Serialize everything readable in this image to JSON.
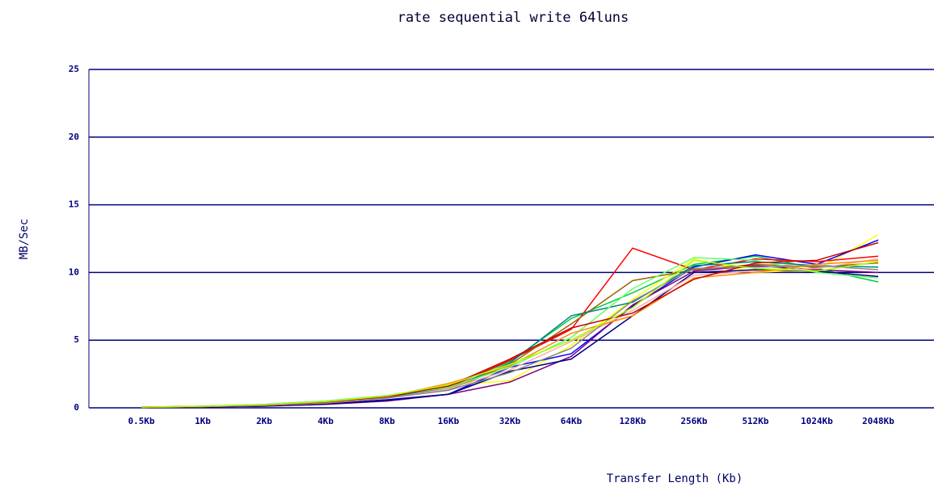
{
  "chart_data": {
    "type": "line",
    "title": "rate sequential write 64luns",
    "x_label": "Transfer Length (Kb)",
    "y_label": "MB/Sec",
    "categories": [
      "0.5Kb",
      "1Kb",
      "2Kb",
      "4Kb",
      "8Kb",
      "16Kb",
      "32Kb",
      "64Kb",
      "128Kb",
      "256Kb",
      "512Kb",
      "1024Kb",
      "2048Kb"
    ],
    "ylim": [
      0,
      25
    ],
    "yticks": [
      0,
      5,
      10,
      15,
      20,
      25
    ],
    "grid": true,
    "series": [
      {
        "color": "#00cc44",
        "values": [
          0.05,
          0.12,
          0.25,
          0.5,
          0.9,
          1.6,
          3.4,
          6.6,
          8.5,
          10.6,
          11.2,
          10.3,
          9.3
        ]
      },
      {
        "color": "#ffff00",
        "values": [
          0.04,
          0.1,
          0.2,
          0.4,
          0.8,
          1.7,
          2.0,
          4.6,
          8.0,
          11.0,
          10.0,
          10.2,
          12.8
        ]
      },
      {
        "color": "#0000ff",
        "values": [
          0.03,
          0.08,
          0.15,
          0.3,
          0.6,
          1.0,
          3.0,
          4.0,
          7.5,
          10.4,
          11.3,
          10.6,
          12.4
        ]
      },
      {
        "color": "#ff0000",
        "values": [
          0.05,
          0.1,
          0.2,
          0.4,
          0.8,
          1.5,
          3.5,
          5.8,
          11.8,
          10.2,
          11.0,
          10.8,
          11.2
        ]
      },
      {
        "color": "#800080",
        "values": [
          0.03,
          0.07,
          0.12,
          0.25,
          0.5,
          1.0,
          1.9,
          3.8,
          7.6,
          10.1,
          10.5,
          10.2,
          10.0
        ]
      },
      {
        "color": "#000080",
        "values": [
          0.03,
          0.07,
          0.13,
          0.28,
          0.55,
          1.0,
          2.7,
          3.6,
          6.8,
          10.0,
          10.2,
          10.1,
          9.7
        ]
      },
      {
        "color": "#996600",
        "values": [
          0.04,
          0.09,
          0.2,
          0.4,
          0.75,
          1.3,
          3.2,
          6.2,
          9.4,
          10.2,
          10.6,
          10.4,
          10.7
        ]
      },
      {
        "color": "#008080",
        "values": [
          0.05,
          0.11,
          0.22,
          0.45,
          0.85,
          1.4,
          3.3,
          6.8,
          7.8,
          10.5,
          10.8,
          10.5,
          10.4
        ]
      },
      {
        "color": "#66ff66",
        "values": [
          0.05,
          0.12,
          0.24,
          0.5,
          0.9,
          1.5,
          3.0,
          5.2,
          8.8,
          11.1,
          10.9,
          10.0,
          9.6
        ]
      },
      {
        "color": "#ffaaaa",
        "values": [
          0.04,
          0.09,
          0.18,
          0.35,
          0.7,
          1.4,
          2.8,
          4.9,
          7.2,
          9.8,
          10.1,
          10.3,
          11.0
        ]
      },
      {
        "color": "#888888",
        "values": [
          0.04,
          0.09,
          0.18,
          0.36,
          0.72,
          1.3,
          2.6,
          4.4,
          7.9,
          10.3,
          10.4,
          10.5,
          10.2
        ]
      },
      {
        "color": "#ff8800",
        "values": [
          0.05,
          0.1,
          0.2,
          0.42,
          0.82,
          1.8,
          3.1,
          5.5,
          6.8,
          9.6,
          10.0,
          10.6,
          10.9
        ]
      },
      {
        "color": "#cc0000",
        "values": [
          0.05,
          0.1,
          0.21,
          0.43,
          0.83,
          1.6,
          3.6,
          5.9,
          7.0,
          9.5,
          10.7,
          10.9,
          12.2
        ]
      },
      {
        "color": "#aaff00",
        "values": [
          0.05,
          0.11,
          0.23,
          0.46,
          0.88,
          1.7,
          3.2,
          5.0,
          7.4,
          10.9,
          10.3,
          10.1,
          10.8
        ]
      }
    ]
  }
}
